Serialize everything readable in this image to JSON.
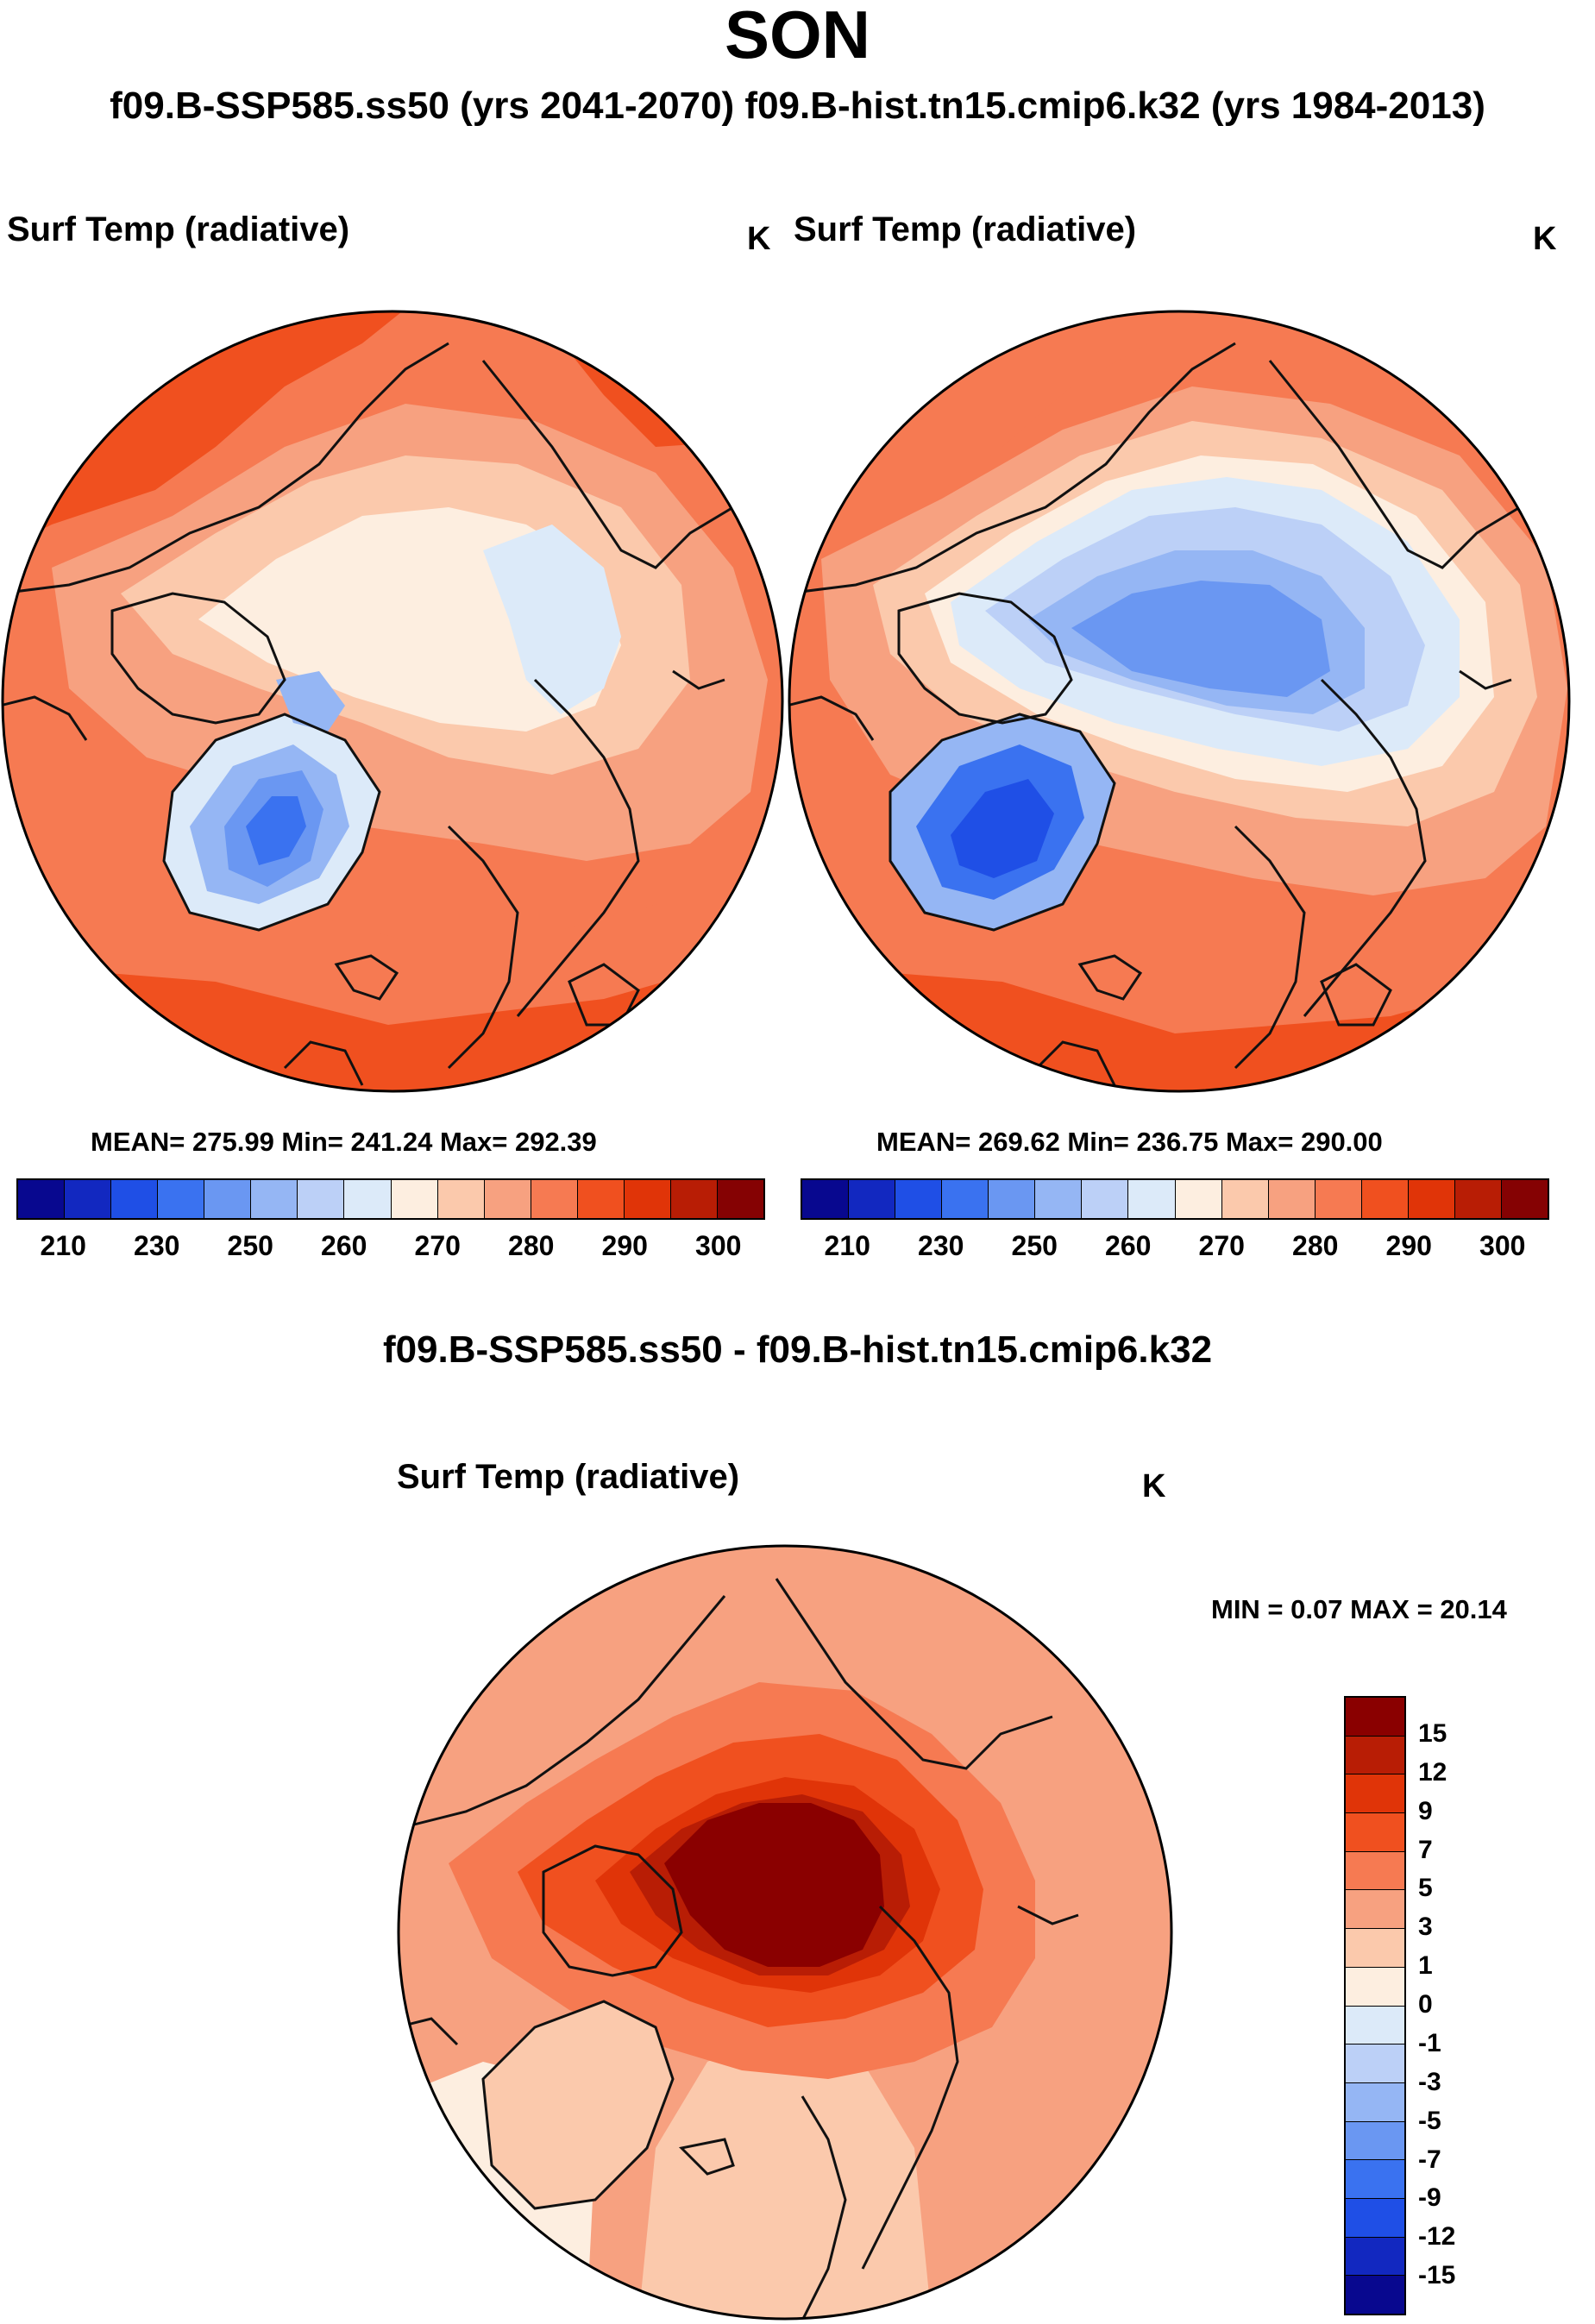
{
  "season": "SON",
  "subtitle": "f09.B-SSP585.ss50 (yrs 2041-2070)  f09.B-hist.tn15.cmip6.k32 (yrs 1984-2013)",
  "panels": [
    {
      "field": "Surf Temp (radiative)",
      "units": "K",
      "stats": "MEAN= 275.99  Min= 241.24  Max= 292.39",
      "case": "f09.B-SSP585.ss50",
      "years": "2041-2070"
    },
    {
      "field": "Surf Temp (radiative)",
      "units": "K",
      "stats": "MEAN= 269.62  Min= 236.75  Max= 290.00",
      "case": "f09.B-hist.tn15.cmip6.k32",
      "years": "1984-2013"
    }
  ],
  "abs_colorbar": {
    "colors": [
      "#08088f",
      "#1228c0",
      "#1f4fe6",
      "#3a72f0",
      "#6a97f2",
      "#95b6f4",
      "#bcd0f7",
      "#dceaf9",
      "#fdeee0",
      "#fbc9ac",
      "#f7a180",
      "#f67a52",
      "#f0501f",
      "#e03408",
      "#b81d05",
      "#850203"
    ],
    "tick_labels": [
      "210",
      "230",
      "250",
      "260",
      "270",
      "280",
      "290",
      "300"
    ]
  },
  "diff": {
    "title": "f09.B-SSP585.ss50 - f09.B-hist.tn15.cmip6.k32",
    "field": "Surf Temp (radiative)",
    "units": "K",
    "minmax": "MIN =   0.07 MAX =  20.14",
    "colorbar": {
      "colors_top_to_bottom": [
        "#8a0000",
        "#b81d05",
        "#e03408",
        "#f0501f",
        "#f67a52",
        "#f7a180",
        "#fbc9ac",
        "#fdeee0",
        "#dceaf9",
        "#bcd0f7",
        "#95b6f4",
        "#6a97f2",
        "#3a72f0",
        "#1f4fe6",
        "#1228c0",
        "#08088f"
      ],
      "tick_labels": [
        "15",
        "12",
        "9",
        "7",
        "5",
        "3",
        "1",
        "0",
        "-1",
        "-3",
        "-5",
        "-7",
        "-9",
        "-12",
        "-15"
      ]
    }
  }
}
